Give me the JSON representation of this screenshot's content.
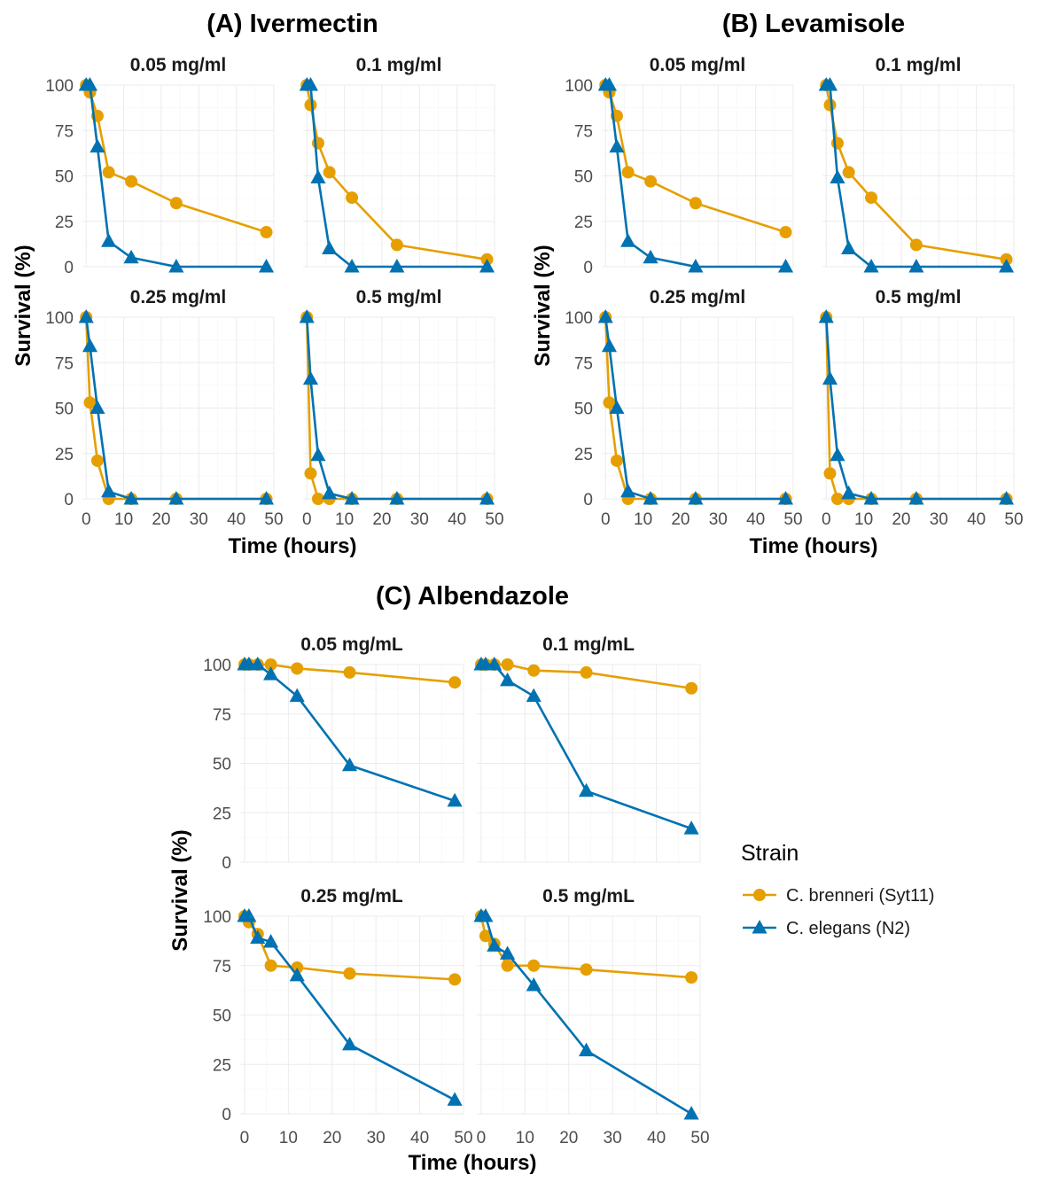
{
  "colors": {
    "brenneri": "#E69F00",
    "elegans": "#0072B2"
  },
  "legend": {
    "title": "Strain",
    "items": [
      {
        "label": "C. brenneri (Syt11)",
        "color": "#E69F00",
        "shape": "circle"
      },
      {
        "label": "C. elegans (N2)",
        "color": "#0072B2",
        "shape": "triangle"
      }
    ]
  },
  "chart_data": [
    {
      "type": "line",
      "title": "(A) Ivermectin",
      "xlabel": "Time (hours)",
      "ylabel": "Survival (%)",
      "xlim": [
        -1,
        50
      ],
      "ylim": [
        0,
        100
      ],
      "xticks": [
        0,
        10,
        20,
        30,
        40,
        50
      ],
      "yticks": [
        0,
        25,
        50,
        75,
        100
      ],
      "facets": [
        {
          "title": "0.05 mg/ml",
          "series": [
            {
              "name": "C. brenneri (Syt11)",
              "x": [
                0,
                1,
                3,
                6,
                12,
                24,
                48
              ],
              "y": [
                100,
                96,
                83,
                52,
                47,
                35,
                19
              ]
            },
            {
              "name": "C. elegans (N2)",
              "x": [
                0,
                1,
                3,
                6,
                12,
                24,
                48
              ],
              "y": [
                100,
                100,
                66,
                14,
                5,
                0,
                0
              ]
            }
          ]
        },
        {
          "title": "0.1 mg/ml",
          "series": [
            {
              "name": "C. brenneri (Syt11)",
              "x": [
                0,
                1,
                3,
                6,
                12,
                24,
                48
              ],
              "y": [
                100,
                89,
                68,
                52,
                38,
                12,
                4
              ]
            },
            {
              "name": "C. elegans (N2)",
              "x": [
                0,
                1,
                3,
                6,
                12,
                24,
                48
              ],
              "y": [
                100,
                100,
                49,
                10,
                0,
                0,
                0
              ]
            }
          ]
        },
        {
          "title": "0.25 mg/ml",
          "series": [
            {
              "name": "C. brenneri (Syt11)",
              "x": [
                0,
                1,
                3,
                6,
                12,
                24,
                48
              ],
              "y": [
                100,
                53,
                21,
                0,
                0,
                0,
                0
              ]
            },
            {
              "name": "C. elegans (N2)",
              "x": [
                0,
                1,
                3,
                6,
                12,
                24,
                48
              ],
              "y": [
                100,
                84,
                50,
                4,
                0,
                0,
                0
              ]
            }
          ]
        },
        {
          "title": "0.5 mg/ml",
          "series": [
            {
              "name": "C. brenneri (Syt11)",
              "x": [
                0,
                1,
                3,
                6,
                12,
                24,
                48
              ],
              "y": [
                100,
                14,
                0,
                0,
                0,
                0,
                0
              ]
            },
            {
              "name": "C. elegans (N2)",
              "x": [
                0,
                1,
                3,
                6,
                12,
                24,
                48
              ],
              "y": [
                100,
                66,
                24,
                3,
                0,
                0,
                0
              ]
            }
          ]
        }
      ]
    },
    {
      "type": "line",
      "title": "(B) Levamisole",
      "xlabel": "Time (hours)",
      "ylabel": "Survival (%)",
      "xlim": [
        -1,
        50
      ],
      "ylim": [
        0,
        100
      ],
      "xticks": [
        0,
        10,
        20,
        30,
        40,
        50
      ],
      "yticks": [
        0,
        25,
        50,
        75,
        100
      ],
      "facets": [
        {
          "title": "0.05 mg/ml",
          "series": [
            {
              "name": "C. brenneri (Syt11)",
              "x": [
                0,
                1,
                3,
                6,
                12,
                24,
                48
              ],
              "y": [
                100,
                96,
                83,
                52,
                47,
                35,
                19
              ]
            },
            {
              "name": "C. elegans (N2)",
              "x": [
                0,
                1,
                3,
                6,
                12,
                24,
                48
              ],
              "y": [
                100,
                100,
                66,
                14,
                5,
                0,
                0
              ]
            }
          ]
        },
        {
          "title": "0.1 mg/ml",
          "series": [
            {
              "name": "C. brenneri (Syt11)",
              "x": [
                0,
                1,
                3,
                6,
                12,
                24,
                48
              ],
              "y": [
                100,
                89,
                68,
                52,
                38,
                12,
                4
              ]
            },
            {
              "name": "C. elegans (N2)",
              "x": [
                0,
                1,
                3,
                6,
                12,
                24,
                48
              ],
              "y": [
                100,
                100,
                49,
                10,
                0,
                0,
                0
              ]
            }
          ]
        },
        {
          "title": "0.25 mg/ml",
          "series": [
            {
              "name": "C. brenneri (Syt11)",
              "x": [
                0,
                1,
                3,
                6,
                12,
                24,
                48
              ],
              "y": [
                100,
                53,
                21,
                0,
                0,
                0,
                0
              ]
            },
            {
              "name": "C. elegans (N2)",
              "x": [
                0,
                1,
                3,
                6,
                12,
                24,
                48
              ],
              "y": [
                100,
                84,
                50,
                4,
                0,
                0,
                0
              ]
            }
          ]
        },
        {
          "title": "0.5 mg/ml",
          "series": [
            {
              "name": "C. brenneri (Syt11)",
              "x": [
                0,
                1,
                3,
                6,
                12,
                24,
                48
              ],
              "y": [
                100,
                14,
                0,
                0,
                0,
                0,
                0
              ]
            },
            {
              "name": "C. elegans (N2)",
              "x": [
                0,
                1,
                3,
                6,
                12,
                24,
                48
              ],
              "y": [
                100,
                66,
                24,
                3,
                0,
                0,
                0
              ]
            }
          ]
        }
      ]
    },
    {
      "type": "line",
      "title": "(C) Albendazole",
      "xlabel": "Time (hours)",
      "ylabel": "Survival (%)",
      "xlim": [
        -1,
        50
      ],
      "ylim": [
        0,
        100
      ],
      "xticks": [
        0,
        10,
        20,
        30,
        40,
        50
      ],
      "yticks": [
        0,
        25,
        50,
        75,
        100
      ],
      "facets": [
        {
          "title": "0.05 mg/mL",
          "series": [
            {
              "name": "C. brenneri (Syt11)",
              "x": [
                0,
                1,
                3,
                6,
                12,
                24,
                48
              ],
              "y": [
                100,
                100,
                100,
                100,
                98,
                96,
                91
              ]
            },
            {
              "name": "C. elegans (N2)",
              "x": [
                0,
                1,
                3,
                6,
                12,
                24,
                48
              ],
              "y": [
                100,
                100,
                100,
                95,
                84,
                49,
                31
              ]
            }
          ]
        },
        {
          "title": "0.1 mg/mL",
          "series": [
            {
              "name": "C. brenneri (Syt11)",
              "x": [
                0,
                1,
                3,
                6,
                12,
                24,
                48
              ],
              "y": [
                100,
                100,
                100,
                100,
                97,
                96,
                88
              ]
            },
            {
              "name": "C. elegans (N2)",
              "x": [
                0,
                1,
                3,
                6,
                12,
                24,
                48
              ],
              "y": [
                100,
                100,
                100,
                92,
                84,
                36,
                17
              ]
            }
          ]
        },
        {
          "title": "0.25 mg/mL",
          "series": [
            {
              "name": "C. brenneri (Syt11)",
              "x": [
                0,
                1,
                3,
                6,
                12,
                24,
                48
              ],
              "y": [
                100,
                97,
                91,
                75,
                74,
                71,
                68
              ]
            },
            {
              "name": "C. elegans (N2)",
              "x": [
                0,
                1,
                3,
                6,
                12,
                24,
                48
              ],
              "y": [
                100,
                100,
                89,
                87,
                70,
                35,
                7
              ]
            }
          ]
        },
        {
          "title": "0.5 mg/mL",
          "series": [
            {
              "name": "C. brenneri (Syt11)",
              "x": [
                0,
                1,
                3,
                6,
                12,
                24,
                48
              ],
              "y": [
                100,
                90,
                86,
                75,
                75,
                73,
                69
              ]
            },
            {
              "name": "C. elegans (N2)",
              "x": [
                0,
                1,
                3,
                6,
                12,
                24,
                48
              ],
              "y": [
                100,
                100,
                85,
                81,
                65,
                32,
                0
              ]
            }
          ]
        }
      ]
    }
  ]
}
